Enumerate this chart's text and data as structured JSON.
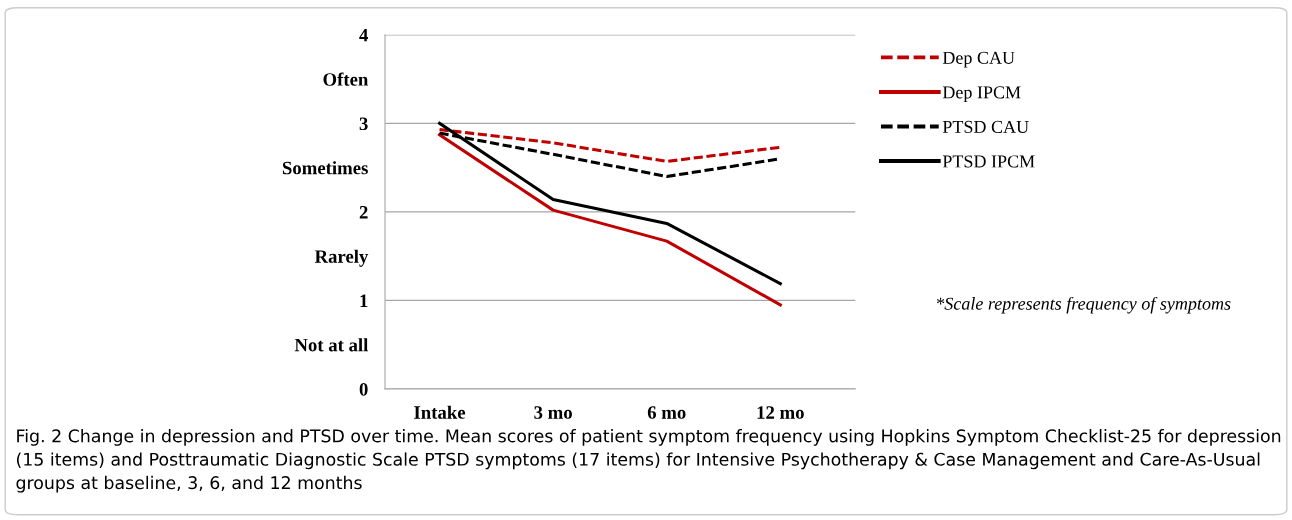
{
  "chart_data": {
    "type": "line",
    "categories": [
      "Intake",
      "3 mo",
      "6 mo",
      "12 mo"
    ],
    "series": [
      {
        "name": "Dep CAU",
        "color": "#c00000",
        "line_style": "dashed",
        "values": [
          2.93,
          2.78,
          2.57,
          2.73
        ]
      },
      {
        "name": "Dep IPCM",
        "color": "#c00000",
        "line_style": "solid",
        "values": [
          2.87,
          2.02,
          1.67,
          0.95
        ]
      },
      {
        "name": "PTSD CAU",
        "color": "#000000",
        "line_style": "dashed",
        "values": [
          2.89,
          2.65,
          2.4,
          2.6
        ]
      },
      {
        "name": "PTSD IPCM",
        "color": "#000000",
        "line_style": "solid",
        "values": [
          3.0,
          2.14,
          1.87,
          1.19
        ]
      }
    ],
    "ylim": [
      0,
      4
    ],
    "yticks": [
      0,
      {
        "value": 0.5,
        "label": "Not at all"
      },
      1,
      {
        "value": 1.5,
        "label": "Rarely"
      },
      2,
      {
        "value": 2.5,
        "label": "Sometimes"
      },
      3,
      {
        "value": 3.5,
        "label": "Often"
      },
      4
    ],
    "grid": "y",
    "legend": "right",
    "marker": "none",
    "annotations": [
      "*Scale represents frequency of symptoms",
      "Fig. 2 Change in depression and PTSD over time. Mean scores of patient symptom frequency using Hopkins Symptom Checklist-25 for depression (15 items) and Posttraumatic Diagnostic Scale PTSD symptoms (17 items) for Intensive Psychotherapy & Case Management and Care-As-Usual groups at baseline, 3, 6, and 12 months"
    ]
  }
}
